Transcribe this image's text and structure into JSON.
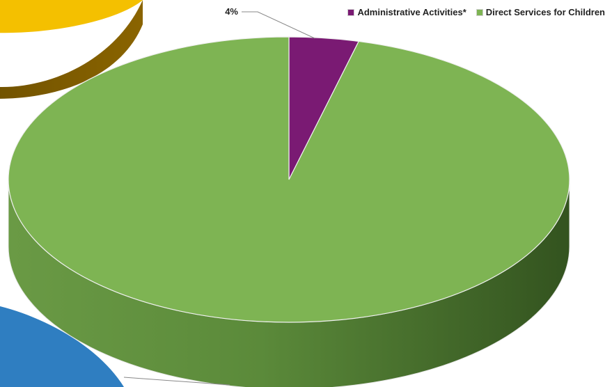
{
  "chart_data": {
    "type": "pie",
    "style": "3d",
    "categories": [
      "Administrative Activities*",
      "Direct Services for Children"
    ],
    "values": [
      4,
      96
    ],
    "labels": [
      "4%",
      ""
    ],
    "colors": {
      "Administrative Activities*": "#7a1a73",
      "Direct Services for Children": "#7eb453"
    },
    "legend_position": "top-right",
    "background_slices_colors": [
      "#f4c000",
      "#2f7ec1"
    ]
  }
}
